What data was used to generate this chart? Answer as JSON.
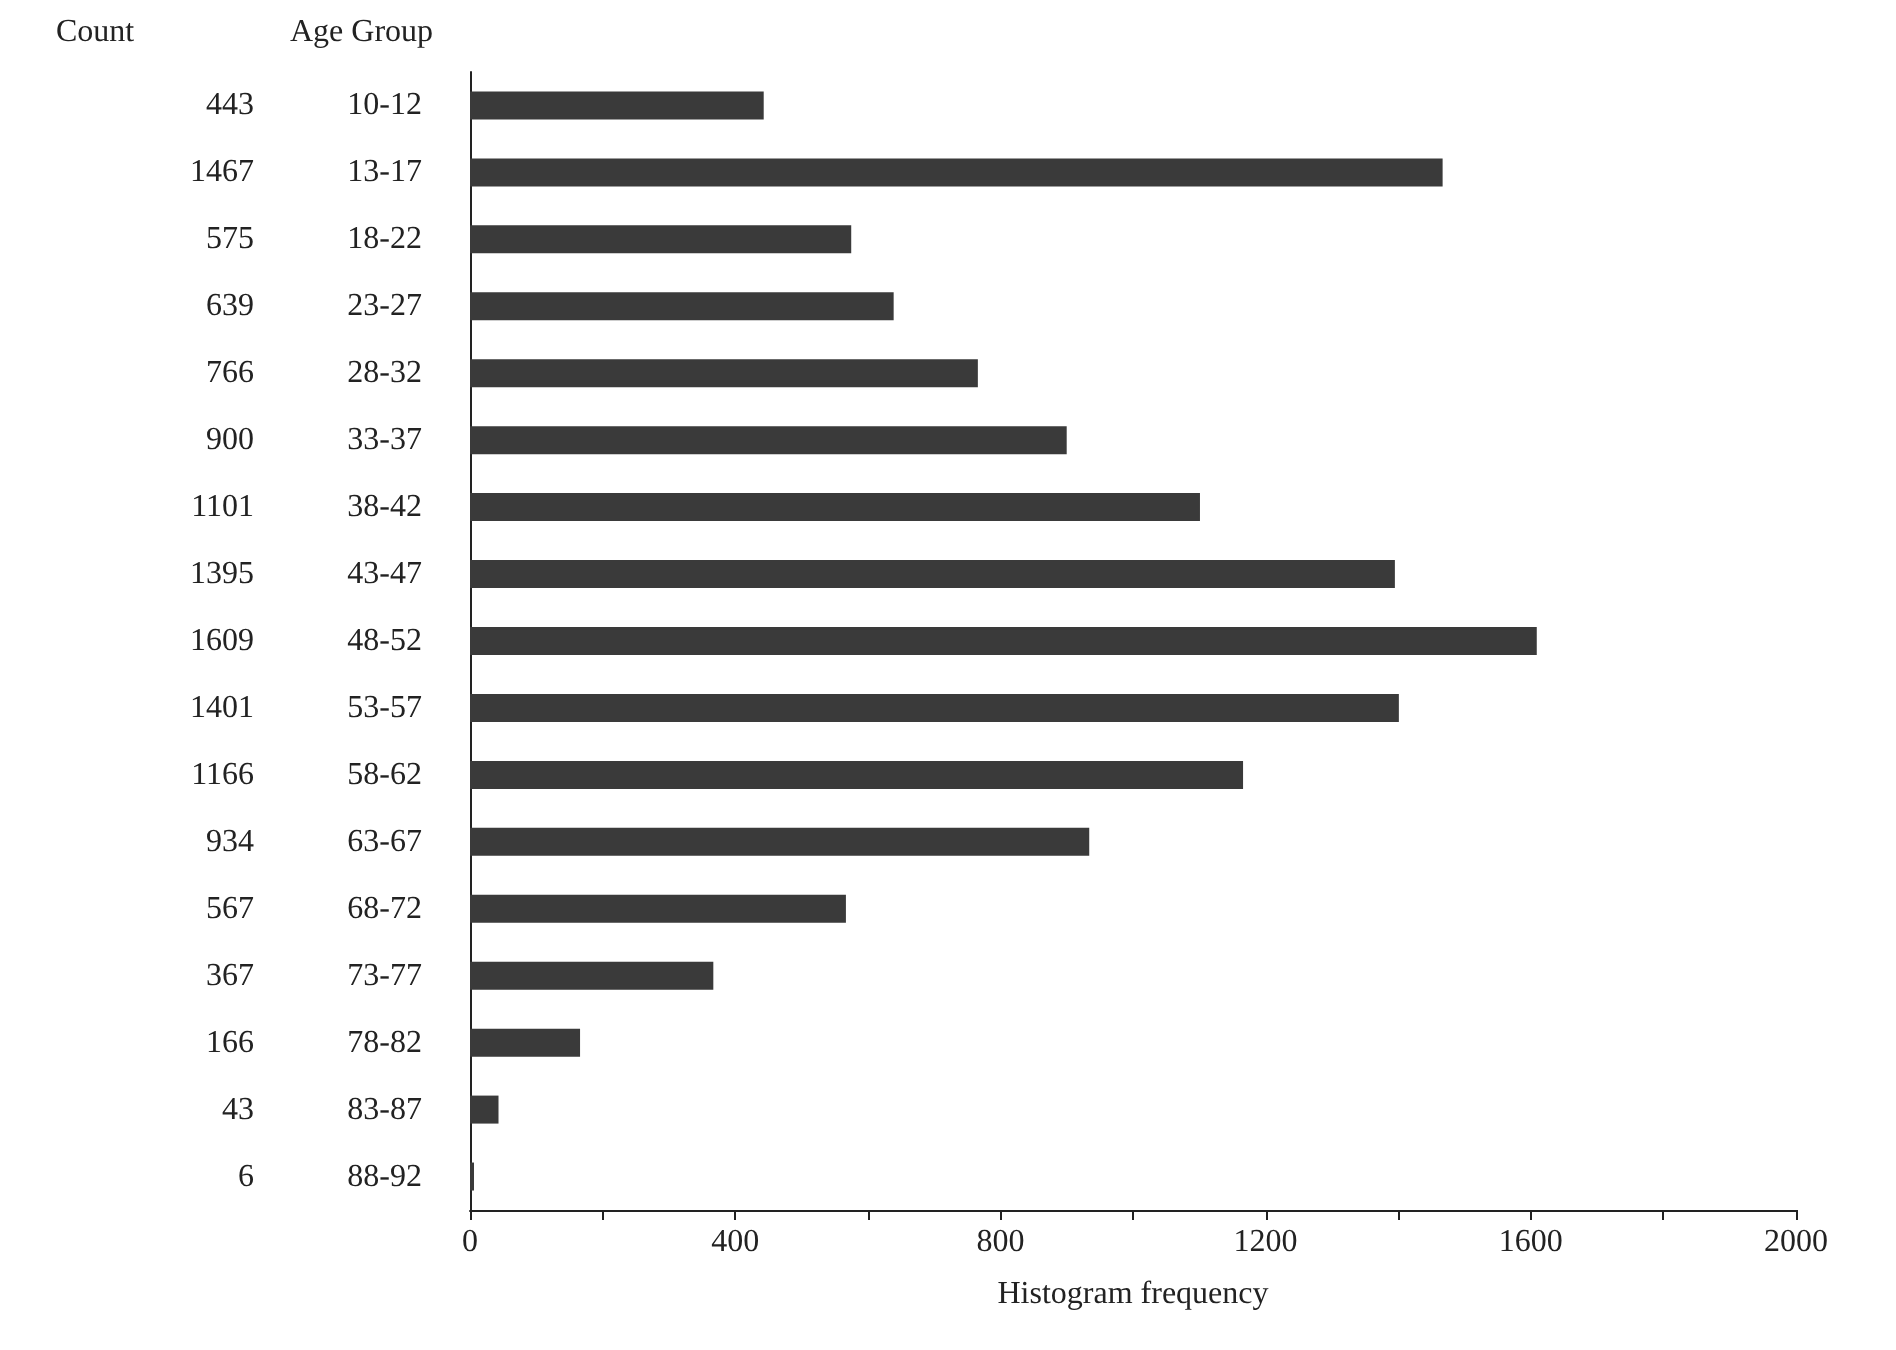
{
  "chart_data": {
    "type": "bar",
    "orientation": "horizontal",
    "xlabel": "Histogram frequency",
    "ylabel": "Age Group",
    "annotations": [
      "Count"
    ],
    "categories": [
      "10-12",
      "13-17",
      "18-22",
      "23-27",
      "28-32",
      "33-37",
      "38-42",
      "43-47",
      "48-52",
      "53-57",
      "58-62",
      "63-67",
      "68-72",
      "73-77",
      "78-82",
      "83-87",
      "88-92"
    ],
    "values": [
      443,
      1467,
      575,
      639,
      766,
      900,
      1101,
      1395,
      1609,
      1401,
      1166,
      934,
      567,
      367,
      166,
      43,
      6
    ],
    "color": "#3a3a3a",
    "data_labels": true,
    "xlim": [
      0,
      2000
    ],
    "xticks": [
      0,
      {
        "value": 200,
        "label": null
      },
      400,
      {
        "value": 600,
        "label": null
      },
      800,
      {
        "value": 1000,
        "label": null
      },
      1200,
      {
        "value": 1400,
        "label": null
      },
      1600,
      {
        "value": 1800,
        "label": null
      },
      2000
    ]
  }
}
